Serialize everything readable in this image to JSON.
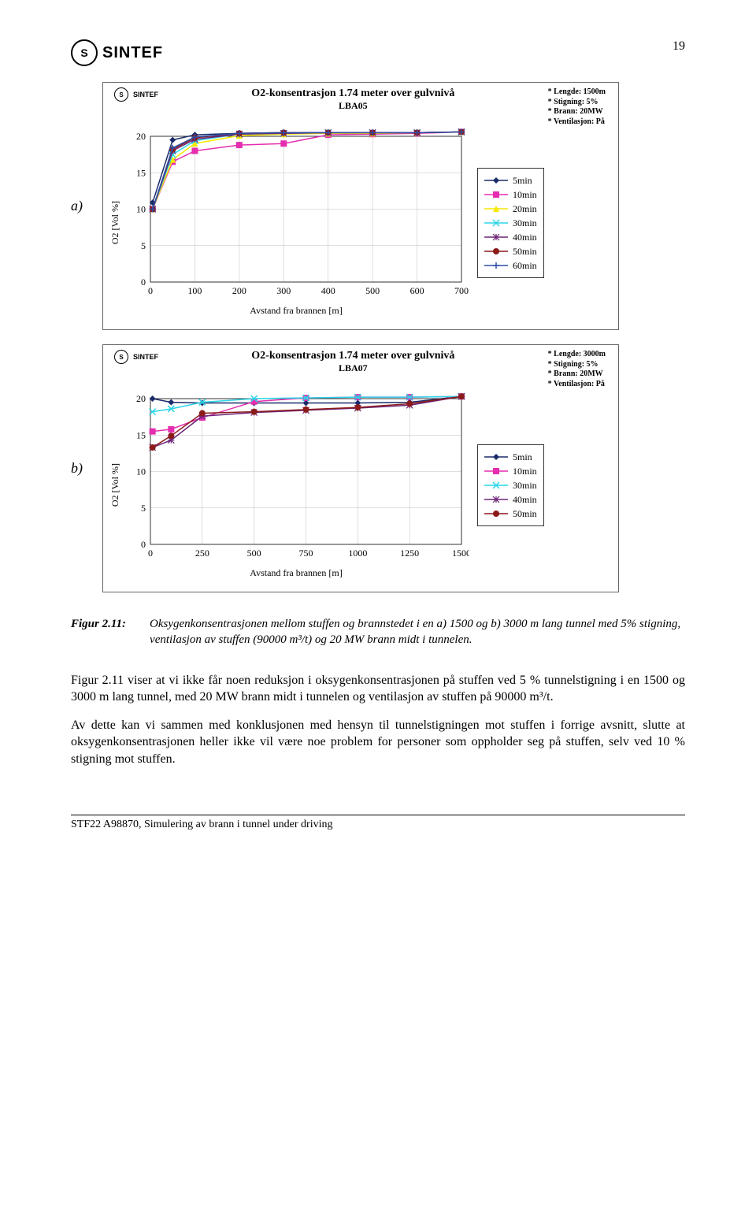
{
  "page_number": "19",
  "sintef_logo": "SINTEF",
  "chartA": {
    "label": "a)",
    "title": "O2-konsentrasjon 1.74 meter over gulvnivå",
    "subtitle": "LBA05",
    "params": [
      "* Lengde: 1500m",
      "* Stigning: 5%",
      "* Brann: 20MW",
      "* Ventilasjon: På"
    ],
    "ylabel": "O2 [Vol %]",
    "xlabel": "Avstand fra brannen [m]",
    "xlim": [
      0,
      700
    ],
    "xtick_step": 100,
    "ylim": [
      0,
      20
    ],
    "ytick_step": 5,
    "grid_color": "#bfbfbf",
    "background": "#ffffff",
    "plot_border": "#333333",
    "font_size_axis": 12,
    "series": [
      {
        "name": "5min",
        "color": "#1b2c6b",
        "marker": "diamond",
        "data": [
          [
            5,
            10.9
          ],
          [
            50,
            19.5
          ],
          [
            100,
            20.2
          ],
          [
            200,
            20.4
          ],
          [
            300,
            20.5
          ],
          [
            400,
            20.5
          ],
          [
            500,
            20.5
          ],
          [
            600,
            20.5
          ],
          [
            700,
            20.6
          ]
        ]
      },
      {
        "name": "10min",
        "color": "#e52db0",
        "marker": "square",
        "data": [
          [
            5,
            10.0
          ],
          [
            50,
            16.5
          ],
          [
            100,
            18.0
          ],
          [
            200,
            18.8
          ],
          [
            300,
            19.0
          ],
          [
            400,
            20.2
          ],
          [
            500,
            20.3
          ],
          [
            600,
            20.4
          ],
          [
            700,
            20.6
          ]
        ]
      },
      {
        "name": "20min",
        "color": "#f5e900",
        "marker": "triangle",
        "data": [
          [
            5,
            10.0
          ],
          [
            50,
            16.8
          ],
          [
            100,
            19.0
          ],
          [
            200,
            20.1
          ],
          [
            300,
            20.3
          ],
          [
            400,
            20.4
          ],
          [
            500,
            20.4
          ],
          [
            600,
            20.5
          ],
          [
            700,
            20.6
          ]
        ]
      },
      {
        "name": "30min",
        "color": "#2ad5e6",
        "marker": "x",
        "data": [
          [
            5,
            10.0
          ],
          [
            50,
            17.5
          ],
          [
            100,
            19.4
          ],
          [
            200,
            20.3
          ],
          [
            300,
            20.4
          ],
          [
            400,
            20.5
          ],
          [
            500,
            20.5
          ],
          [
            600,
            20.5
          ],
          [
            700,
            20.6
          ]
        ]
      },
      {
        "name": "40min",
        "color": "#6d2578",
        "marker": "asterisk",
        "data": [
          [
            5,
            10.0
          ],
          [
            50,
            18.0
          ],
          [
            100,
            19.6
          ],
          [
            200,
            20.3
          ],
          [
            300,
            20.4
          ],
          [
            400,
            20.5
          ],
          [
            500,
            20.5
          ],
          [
            600,
            20.5
          ],
          [
            700,
            20.6
          ]
        ]
      },
      {
        "name": "50min",
        "color": "#8b1a1a",
        "marker": "circle",
        "data": [
          [
            5,
            10.0
          ],
          [
            50,
            18.2
          ],
          [
            100,
            19.8
          ],
          [
            200,
            20.4
          ],
          [
            300,
            20.5
          ],
          [
            400,
            20.5
          ],
          [
            500,
            20.5
          ],
          [
            600,
            20.5
          ],
          [
            700,
            20.6
          ]
        ]
      },
      {
        "name": "60min",
        "color": "#2d4fa8",
        "marker": "plus",
        "data": [
          [
            5,
            10.0
          ],
          [
            50,
            18.4
          ],
          [
            100,
            19.9
          ],
          [
            200,
            20.4
          ],
          [
            300,
            20.5
          ],
          [
            400,
            20.5
          ],
          [
            500,
            20.5
          ],
          [
            600,
            20.5
          ],
          [
            700,
            20.6
          ]
        ]
      }
    ]
  },
  "chartB": {
    "label": "b)",
    "title": "O2-konsentrasjon 1.74 meter over gulvnivå",
    "subtitle": "LBA07",
    "params": [
      "* Lengde: 3000m",
      "* Stigning: 5%",
      "* Brann: 20MW",
      "* Ventilasjon: På"
    ],
    "ylabel": "O2 [Vol %]",
    "xlabel": "Avstand fra brannen [m]",
    "xlim": [
      0,
      1500
    ],
    "xtick_step": 250,
    "ylim": [
      0,
      20
    ],
    "ytick_step": 5,
    "grid_color": "#bfbfbf",
    "background": "#ffffff",
    "plot_border": "#333333",
    "font_size_axis": 12,
    "series": [
      {
        "name": "5min",
        "color": "#1b2c6b",
        "marker": "diamond",
        "data": [
          [
            10,
            20.0
          ],
          [
            100,
            19.5
          ],
          [
            250,
            19.4
          ],
          [
            500,
            19.4
          ],
          [
            750,
            19.4
          ],
          [
            1000,
            19.4
          ],
          [
            1250,
            19.5
          ],
          [
            1500,
            20.3
          ]
        ]
      },
      {
        "name": "10min",
        "color": "#e52db0",
        "marker": "square",
        "data": [
          [
            10,
            15.5
          ],
          [
            100,
            15.8
          ],
          [
            250,
            17.4
          ],
          [
            500,
            19.6
          ],
          [
            750,
            20.1
          ],
          [
            1000,
            20.2
          ],
          [
            1250,
            20.2
          ],
          [
            1500,
            20.3
          ]
        ]
      },
      {
        "name": "30min",
        "color": "#2ad5e6",
        "marker": "x",
        "data": [
          [
            10,
            18.2
          ],
          [
            100,
            18.6
          ],
          [
            250,
            19.5
          ],
          [
            500,
            20.0
          ],
          [
            750,
            20.1
          ],
          [
            1000,
            20.2
          ],
          [
            1250,
            20.2
          ],
          [
            1500,
            20.3
          ]
        ]
      },
      {
        "name": "40min",
        "color": "#6d2578",
        "marker": "asterisk",
        "data": [
          [
            10,
            13.3
          ],
          [
            100,
            14.3
          ],
          [
            250,
            17.6
          ],
          [
            500,
            18.1
          ],
          [
            750,
            18.4
          ],
          [
            1000,
            18.7
          ],
          [
            1250,
            19.1
          ],
          [
            1500,
            20.3
          ]
        ]
      },
      {
        "name": "50min",
        "color": "#8b1a1a",
        "marker": "circle",
        "data": [
          [
            10,
            13.3
          ],
          [
            100,
            14.9
          ],
          [
            250,
            18.0
          ],
          [
            500,
            18.2
          ],
          [
            750,
            18.5
          ],
          [
            1000,
            18.8
          ],
          [
            1250,
            19.3
          ],
          [
            1500,
            20.3
          ]
        ]
      }
    ]
  },
  "caption_label": "Figur 2.11:",
  "caption_text": "Oksygenkonsentrasjonen mellom stuffen og brannstedet i en a) 1500 og b) 3000 m lang tunnel med 5%  stigning, ventilasjon av stuffen (90000 m³/t)  og 20 MW brann midt i tunnelen.",
  "para1": "Figur 2.11 viser at vi ikke får noen reduksjon i oksygenkonsentrasjonen på stuffen ved 5 % tunnelstigning i en 1500 og 3000 m lang tunnel, med 20 MW brann midt i tunnelen og ventilasjon av stuffen på 90000 m³/t.",
  "para2": "Av dette kan vi sammen med konklusjonen med hensyn til tunnelstigningen mot stuffen i forrige avsnitt, slutte at oksygenkonsentrasjonen heller ikke vil være noe problem for personer som oppholder seg på stuffen, selv ved 10 % stigning mot stuffen.",
  "footer": "STF22 A98870, Simulering av brann i tunnel under driving"
}
